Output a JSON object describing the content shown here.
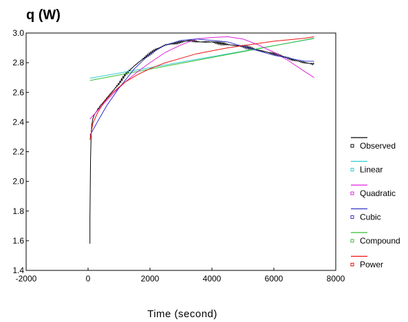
{
  "chart_data": {
    "type": "line",
    "title": "",
    "ylabel": "q (W)",
    "xlabel": "Time (second)",
    "xlim": [
      -2000,
      8000
    ],
    "ylim": [
      1.4,
      3.0
    ],
    "xticks": [
      -2000,
      0,
      2000,
      4000,
      6000,
      8000
    ],
    "xtick_labels": [
      "-2000",
      "0",
      "2000",
      "4000",
      "6000",
      "8000"
    ],
    "yticks": [
      1.4,
      1.6,
      1.8,
      2.0,
      2.2,
      2.4,
      2.6,
      2.8,
      3.0
    ],
    "ytick_labels": [
      "1.4",
      "1.6",
      "1.8",
      "2.0",
      "2.2",
      "2.4",
      "2.6",
      "2.8",
      "3.0"
    ],
    "grid": false,
    "legend_position": "right",
    "series": [
      {
        "name": "Observed",
        "color": "#000000",
        "style": "noisy",
        "x": [
          60,
          60,
          80,
          100,
          120,
          150,
          200,
          300,
          400,
          600,
          800,
          1000,
          1200,
          1500,
          1800,
          2000,
          2200,
          2500,
          2800,
          3000,
          3300,
          3600,
          4000,
          4300,
          4600,
          5000,
          5400,
          5800,
          6200,
          6600,
          7000,
          7300
        ],
        "y": [
          1.58,
          1.75,
          2.15,
          2.32,
          2.38,
          2.42,
          2.45,
          2.48,
          2.51,
          2.56,
          2.61,
          2.66,
          2.72,
          2.78,
          2.83,
          2.86,
          2.89,
          2.92,
          2.93,
          2.94,
          2.95,
          2.94,
          2.94,
          2.93,
          2.92,
          2.91,
          2.89,
          2.87,
          2.85,
          2.82,
          2.8,
          2.79
        ]
      },
      {
        "name": "Linear",
        "color": "#33cccc",
        "x": [
          60,
          7300
        ],
        "y": [
          2.695,
          2.963
        ]
      },
      {
        "name": "Quadratic",
        "color": "#dd22dd",
        "x": [
          60,
          400,
          800,
          1200,
          1600,
          2000,
          2500,
          3000,
          3500,
          4000,
          4500,
          5000,
          5500,
          6000,
          6500,
          7000,
          7300
        ],
        "y": [
          2.42,
          2.5,
          2.59,
          2.67,
          2.74,
          2.8,
          2.87,
          2.92,
          2.96,
          2.97,
          2.975,
          2.96,
          2.92,
          2.87,
          2.81,
          2.74,
          2.7
        ]
      },
      {
        "name": "Cubic",
        "color": "#3333cc",
        "x": [
          60,
          300,
          600,
          1000,
          1500,
          2000,
          2500,
          3000,
          3500,
          4000,
          4500,
          5000,
          5500,
          6000,
          6500,
          7000,
          7300
        ],
        "y": [
          2.31,
          2.4,
          2.51,
          2.63,
          2.76,
          2.86,
          2.92,
          2.95,
          2.96,
          2.95,
          2.94,
          2.91,
          2.88,
          2.85,
          2.83,
          2.81,
          2.81
        ]
      },
      {
        "name": "Compound",
        "color": "#33bb33",
        "x": [
          60,
          7300
        ],
        "y": [
          2.68,
          2.965
        ]
      },
      {
        "name": "Power",
        "color": "#ee1111",
        "x": [
          60,
          150,
          300,
          500,
          800,
          1200,
          1600,
          2000,
          2500,
          3000,
          3500,
          4000,
          4500,
          5000,
          5500,
          6000,
          6500,
          7000,
          7300
        ],
        "y": [
          2.28,
          2.39,
          2.46,
          2.53,
          2.6,
          2.67,
          2.72,
          2.76,
          2.8,
          2.83,
          2.86,
          2.88,
          2.9,
          2.915,
          2.93,
          2.945,
          2.955,
          2.965,
          2.975
        ]
      }
    ]
  }
}
